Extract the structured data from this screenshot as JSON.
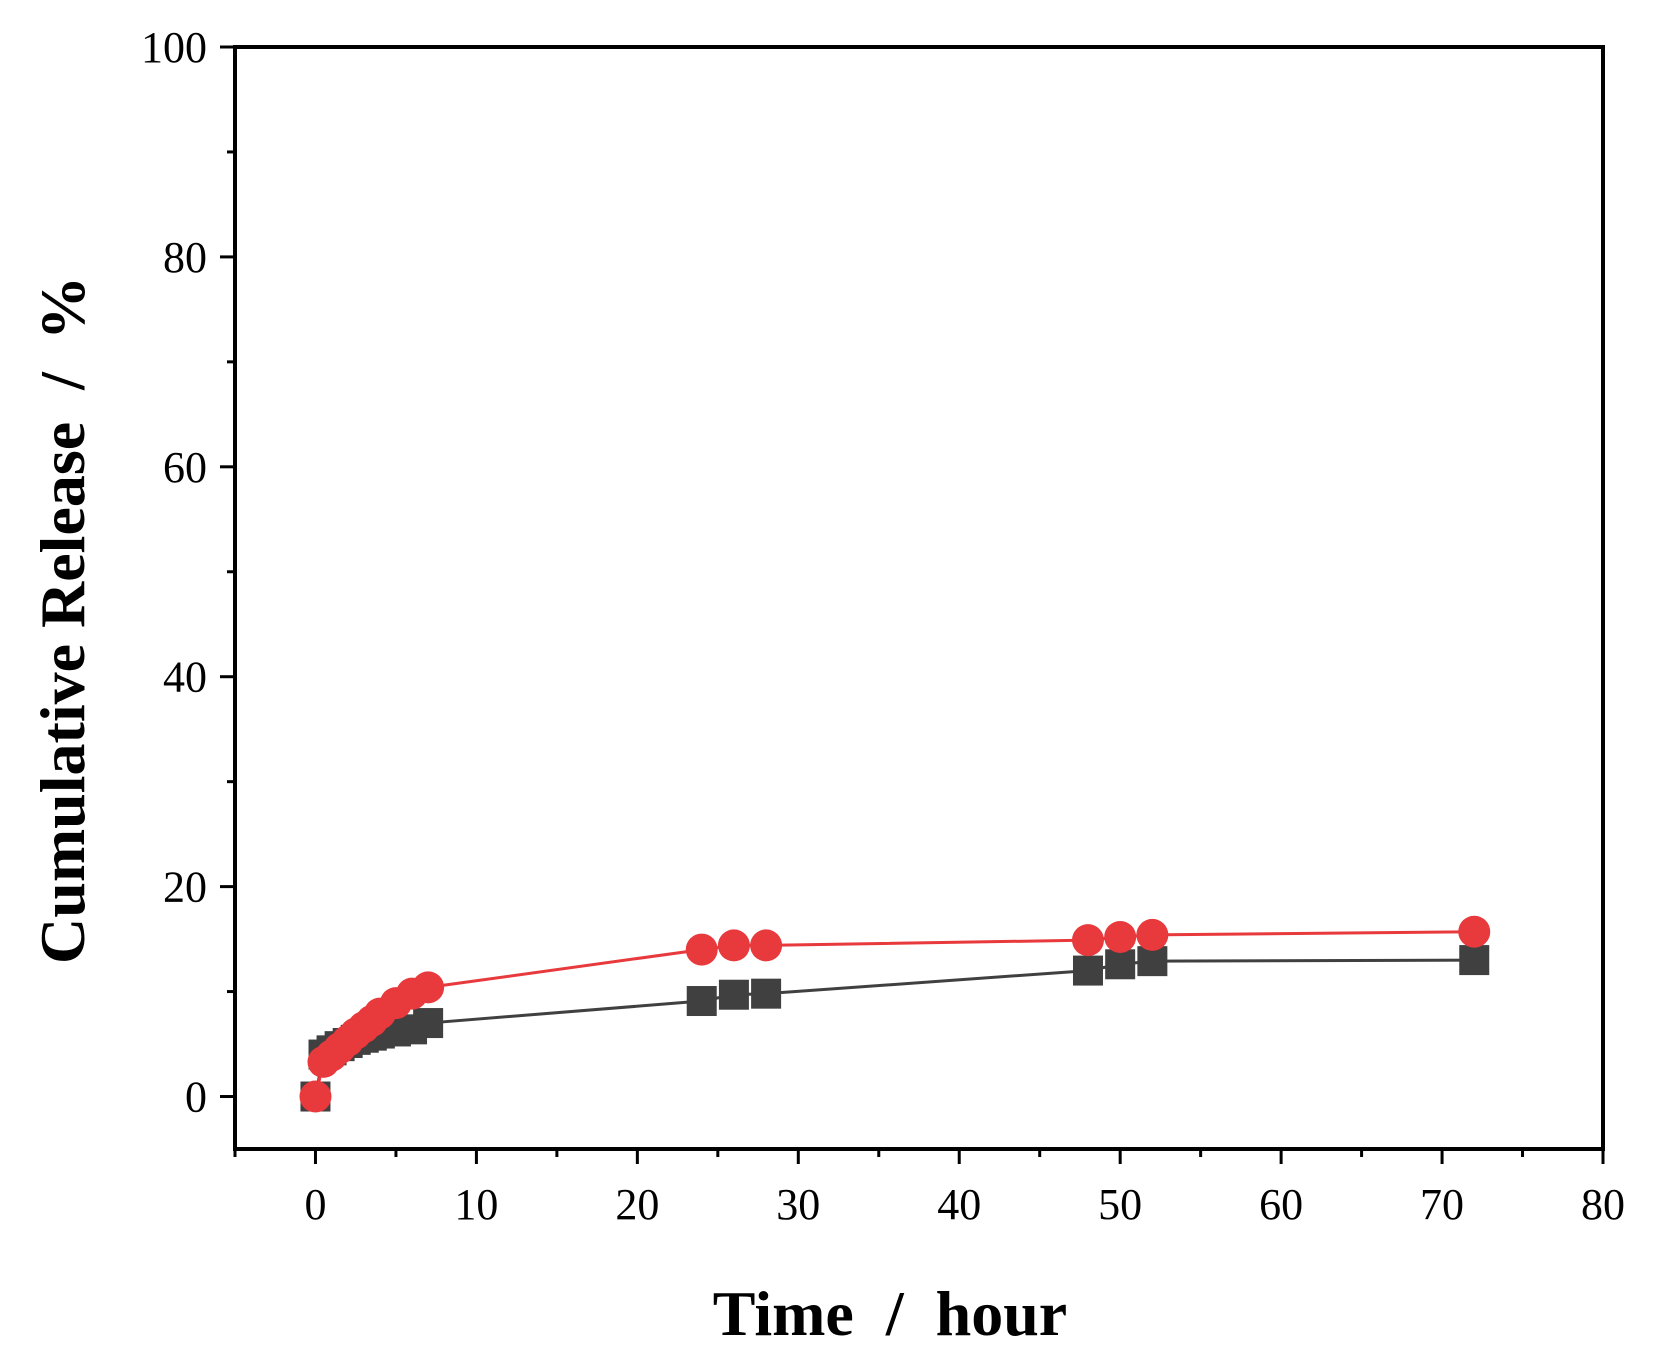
{
  "chart_data": {
    "type": "line",
    "title": "",
    "xlabel": "Time  /  hour",
    "ylabel": "Cumulative Release  /  %",
    "xlim": [
      -5,
      80
    ],
    "ylim": [
      -5,
      100
    ],
    "x_ticks": [
      0,
      10,
      20,
      30,
      40,
      50,
      60,
      70,
      80
    ],
    "x_tick_labels": [
      "0",
      "10",
      "20",
      "30",
      "40",
      "50",
      "60",
      "70",
      "80"
    ],
    "y_ticks": [
      0,
      20,
      40,
      60,
      80,
      100
    ],
    "y_tick_labels": [
      "0",
      "20",
      "40",
      "60",
      "80",
      "100"
    ],
    "grid": false,
    "legend": "none",
    "series": [
      {
        "marker": "square",
        "color": "#404040",
        "x": [
          0,
          0.5,
          1,
          1.5,
          2,
          2.5,
          3,
          3.5,
          4,
          5,
          6,
          7,
          24,
          26,
          28,
          48,
          50,
          52,
          72
        ],
        "y": [
          0,
          4.0,
          4.4,
          4.8,
          5.1,
          5.4,
          5.6,
          5.8,
          6.0,
          6.2,
          6.4,
          7.0,
          9.1,
          9.7,
          9.8,
          12.0,
          12.6,
          12.9,
          13.0
        ]
      },
      {
        "marker": "circle",
        "color": "#e8393c",
        "x": [
          0,
          0.5,
          1,
          1.5,
          2,
          2.5,
          3,
          3.5,
          4,
          5,
          6,
          7,
          24,
          26,
          28,
          48,
          50,
          52,
          72
        ],
        "y": [
          0,
          3.3,
          3.9,
          4.6,
          5.3,
          6.0,
          6.6,
          7.2,
          7.9,
          8.9,
          9.8,
          10.4,
          14.0,
          14.4,
          14.4,
          14.9,
          15.2,
          15.4,
          15.7
        ]
      }
    ]
  }
}
